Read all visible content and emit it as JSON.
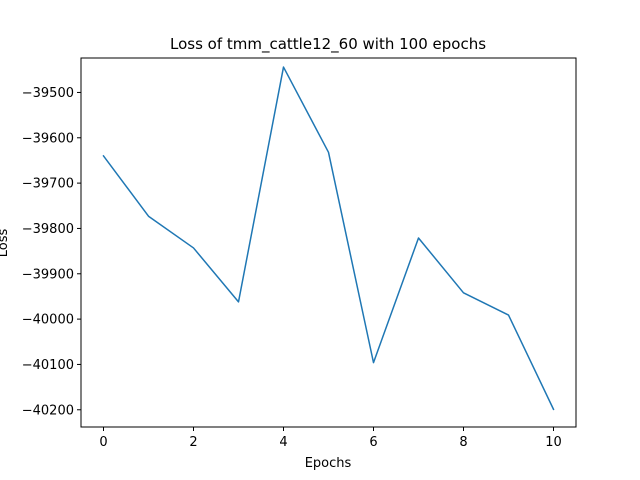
{
  "chart_data": {
    "type": "line",
    "title": "Loss of tmm_cattle12_60 with 100 epochs",
    "xlabel": "Epochs",
    "ylabel": "Loss",
    "x": [
      0,
      1,
      2,
      3,
      4,
      5,
      6,
      7,
      8,
      9,
      10
    ],
    "xlim": [
      -0.5,
      10.5
    ],
    "ylim": [
      -40238,
      -39424
    ],
    "xticks": [
      0,
      2,
      4,
      6,
      8,
      10
    ],
    "yticks": [
      -39500,
      -39600,
      -39700,
      -39800,
      -39900,
      -40000,
      -40100,
      -40200
    ],
    "grid": false,
    "series": [
      {
        "color": "#1f77b4",
        "values": [
          -39640,
          -39773,
          -39843,
          -39962,
          -39444,
          -39632,
          -40096,
          -39821,
          -39942,
          -39991,
          -40199
        ]
      }
    ]
  }
}
